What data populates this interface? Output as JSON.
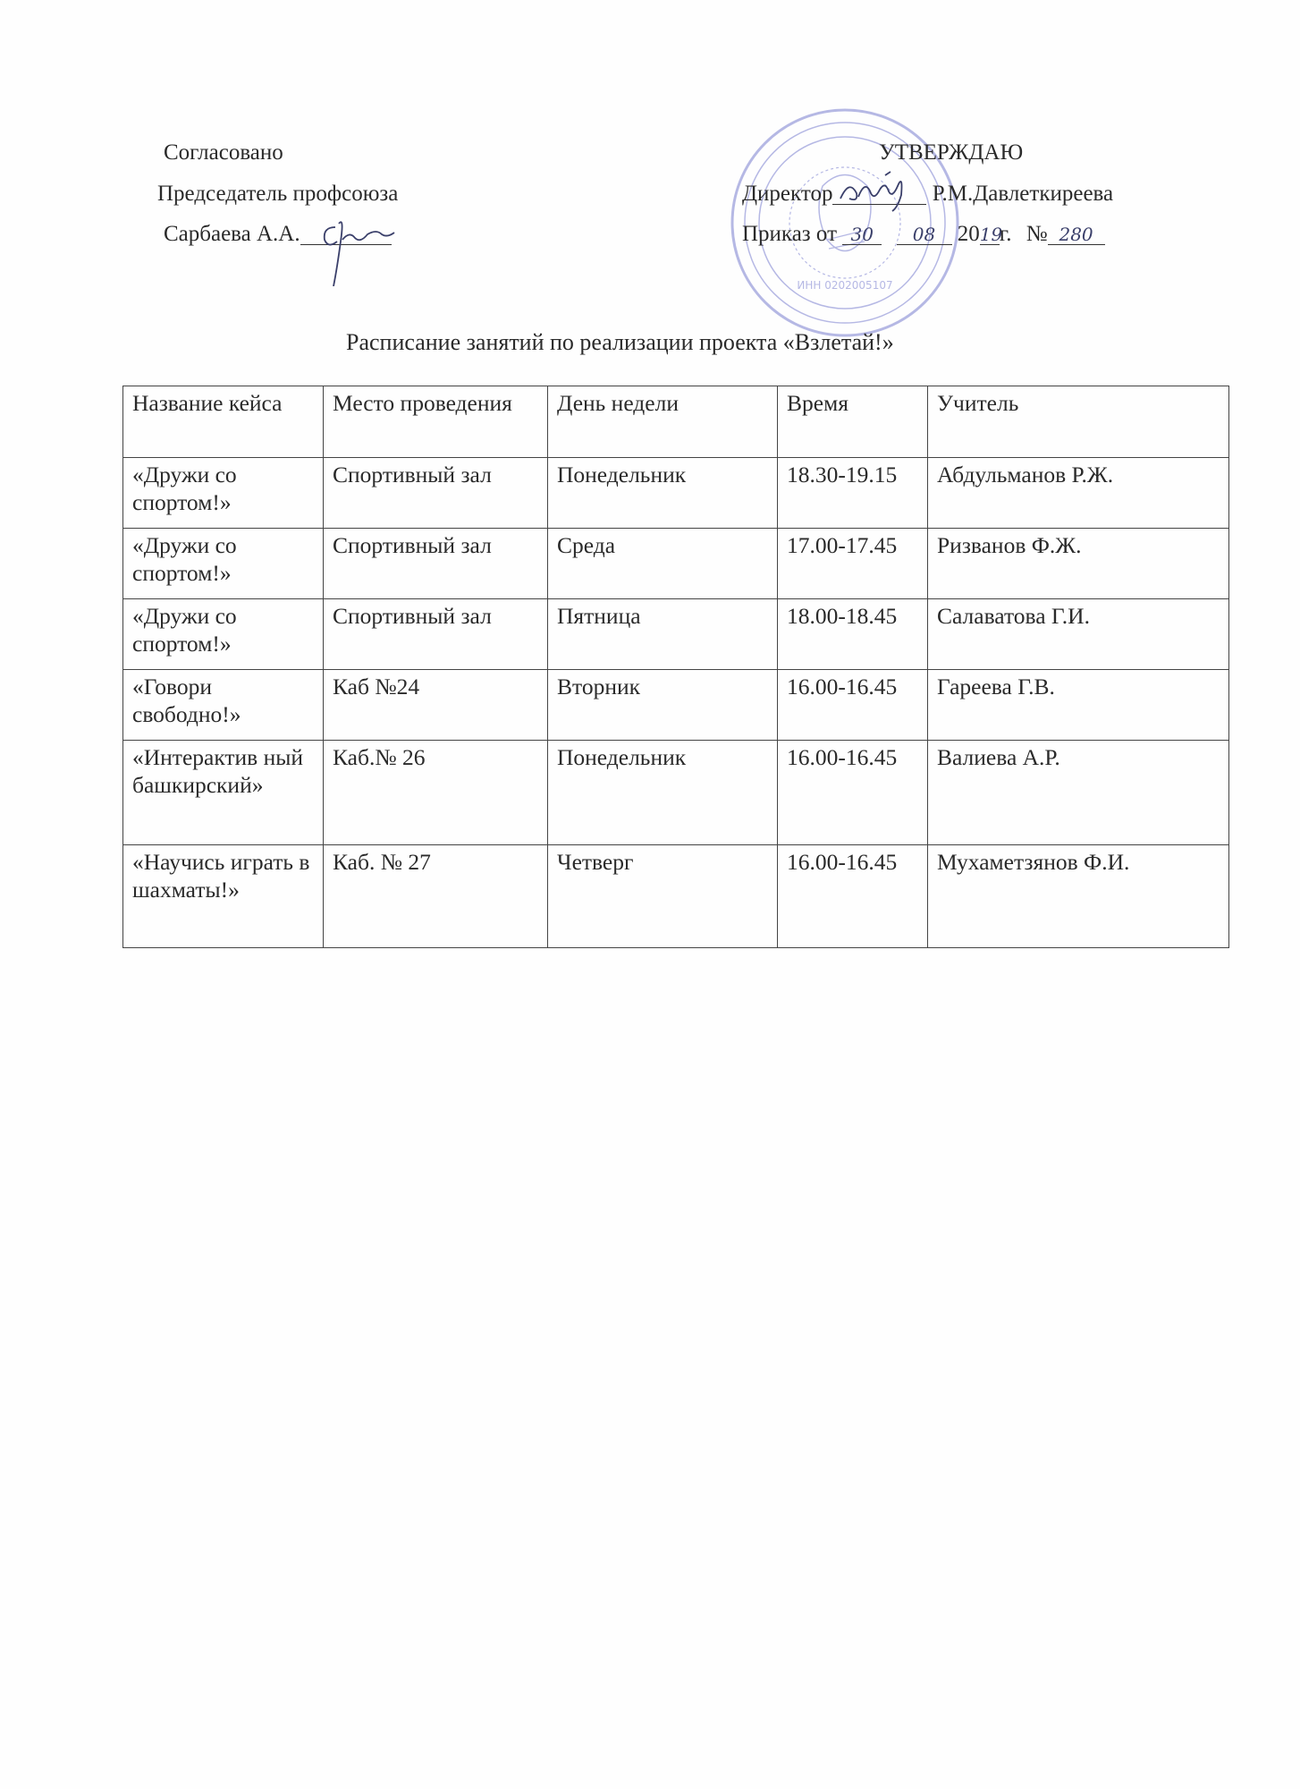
{
  "left_block": {
    "agreed": "Согласовано",
    "position": "Председатель профсоюза",
    "name": "Сарбаева А.А."
  },
  "right_block": {
    "approve": "УТВЕРЖДАЮ",
    "director_label": "Директор",
    "director_name": "Р.М.Давлеткиреева",
    "order_label": "Приказ от",
    "order_day": "30",
    "order_month": "08",
    "order_year_prefix": "20",
    "order_year_suffix": "19",
    "order_year_unit": "г.",
    "order_number_label": "№",
    "order_number": "280"
  },
  "stamp": {
    "color": "#7b7fd0",
    "inn": "ИНН 0202005107"
  },
  "title": "Расписание занятий по реализации проекта «Взлетай!»",
  "table": {
    "headers": [
      "Название кейса",
      "Место проведения",
      "День недели",
      "Время",
      "Учитель"
    ],
    "rows": [
      [
        "«Дружи со спортом!»",
        "Спортивный зал",
        "Понедельник",
        "18.30-19.15",
        "Абдульманов Р.Ж."
      ],
      [
        "«Дружи со спортом!»",
        "Спортивный зал",
        "Среда",
        "17.00-17.45",
        "Ризванов Ф.Ж."
      ],
      [
        "«Дружи со спортом!»",
        "Спортивный зал",
        "Пятница",
        "18.00-18.45",
        "Салаватова Г.И."
      ],
      [
        "«Говори свободно!»",
        "Каб №24",
        "Вторник",
        "16.00-16.45",
        "Гареева Г.В."
      ],
      [
        "«Интерактив ный башкирский»",
        "Каб.№ 26",
        "Понедельник",
        "16.00-16.45",
        "Валиева А.Р."
      ],
      [
        "«Научись играть в шахматы!»",
        "Каб. № 27",
        "Четверг",
        "16.00-16.45",
        "Мухаметзянов Ф.И."
      ]
    ]
  }
}
